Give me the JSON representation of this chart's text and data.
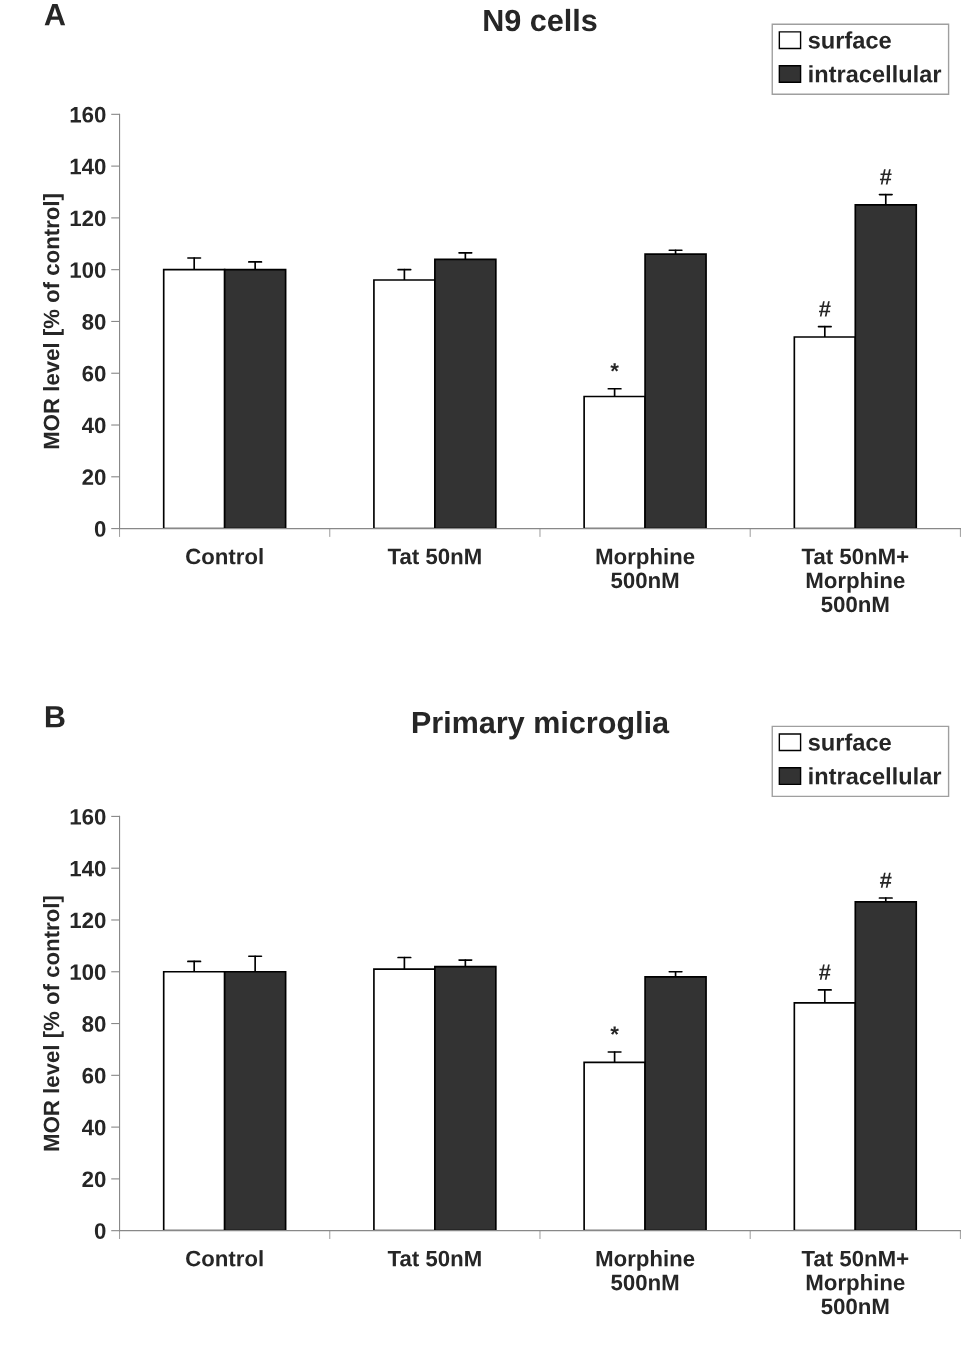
{
  "chart_data": [
    {
      "type": "bar",
      "title": "N9 cells",
      "ylabel": "MOR level [% of control]",
      "categories": [
        "Control",
        "Tat 50nM",
        "Morphine\n500nM",
        "Tat 50nM+\nMorphine\n500nM"
      ],
      "ylim": [
        0,
        160
      ],
      "yticks": [
        0,
        20,
        40,
        60,
        80,
        100,
        120,
        140,
        160
      ],
      "legend": "top right",
      "grid": false,
      "series": [
        {
          "name": "surface",
          "color": "#ffffff",
          "values": [
            100,
            96,
            51,
            74
          ],
          "errors": [
            [
              100,
              104.5
            ],
            [
              96,
              100
            ],
            [
              51,
              54
            ],
            [
              74,
              78
            ]
          ]
        },
        {
          "name": "intracellular",
          "color": "#333333",
          "values": [
            100,
            104,
            106,
            125
          ],
          "errors": [
            [
              100,
              103
            ],
            [
              104,
              106.5
            ],
            [
              106,
              107.5
            ],
            [
              125,
              129
            ]
          ]
        }
      ],
      "annotations": [
        "A",
        {
          "text": "*",
          "x": "Morphine\n500nM",
          "y": 51
        },
        {
          "text": "#",
          "x": "Tat 50nM+\nMorphine\n500nM",
          "y": 74
        },
        {
          "text": "#",
          "x": "Tat 50nM+\nMorphine\n500nM",
          "y": 125
        }
      ]
    },
    {
      "type": "bar",
      "title": "Primary microglia",
      "ylabel": "MOR level [% of control]",
      "categories": [
        "Control",
        "Tat 50nM",
        "Morphine\n500nM",
        "Tat 50nM+\nMorphine\n500nM"
      ],
      "ylim": [
        0,
        160
      ],
      "yticks": [
        0,
        20,
        40,
        60,
        80,
        100,
        120,
        140,
        160
      ],
      "legend": "top right",
      "grid": false,
      "series": [
        {
          "name": "surface",
          "color": "#ffffff",
          "values": [
            100,
            101,
            65,
            88
          ],
          "errors": [
            [
              100,
              104
            ],
            [
              101,
              105.5
            ],
            [
              65,
              69
            ],
            [
              88,
              93
            ]
          ]
        },
        {
          "name": "intracellular",
          "color": "#333333",
          "values": [
            100,
            102,
            98,
            127
          ],
          "errors": [
            [
              100,
              106
            ],
            [
              102,
              104.5
            ],
            [
              98,
              100
            ],
            [
              127,
              128.5
            ]
          ]
        }
      ],
      "annotations": [
        "B",
        {
          "text": "*",
          "x": "Morphine\n500nM",
          "y": 65
        },
        {
          "text": "#",
          "x": "Tat 50nM+\nMorphine\n500nM",
          "y": 88
        },
        {
          "text": "#",
          "x": "Tat 50nM+\nMorphine\n500nM",
          "y": 127
        }
      ]
    }
  ]
}
